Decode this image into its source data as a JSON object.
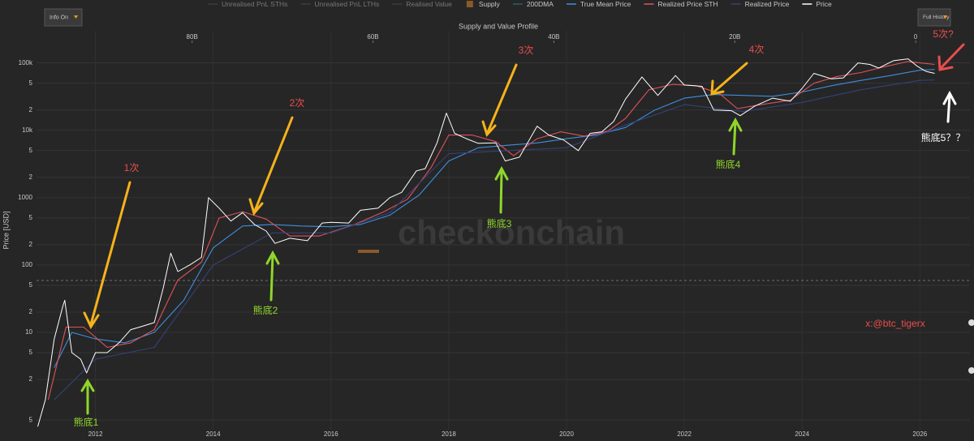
{
  "controls": {
    "info": "Info On",
    "history": "Full History"
  },
  "annotations": [
    "1次",
    "2次",
    "3次",
    "4次",
    "5次?",
    "熊底1",
    "熊底2",
    "熊底3",
    "熊底4",
    "熊底5？？",
    "x:@btc_tigerx"
  ],
  "watermark": "checkonchain",
  "chart_data": {
    "type": "line",
    "ylabel": "Price [USD]",
    "log_y": true,
    "grid": true,
    "ylim": [
      0.36,
      300000
    ],
    "yticks": [
      {
        "value": 0.5,
        "label": "5"
      },
      {
        "value": 2,
        "label": "2"
      },
      {
        "value": 5,
        "label": "5"
      },
      10,
      {
        "value": 20,
        "label": "2"
      },
      {
        "value": 50,
        "label": "5"
      },
      100,
      {
        "value": 200,
        "label": "2"
      },
      {
        "value": 500,
        "label": "5"
      },
      1000,
      {
        "value": 2000,
        "label": "2"
      },
      {
        "value": 5000,
        "label": "5"
      },
      {
        "value": 10000,
        "label": "10k"
      },
      {
        "value": 20000,
        "label": "2"
      },
      {
        "value": 50000,
        "label": "5"
      },
      {
        "value": 100000,
        "label": "100k"
      }
    ],
    "xlim": [
      2011,
      2026.85
    ],
    "xticks": [
      2012,
      2014,
      2016,
      2018,
      2020,
      2022,
      2024,
      2026
    ],
    "x2title": "Supply and Value Profile",
    "x2lim": [
      97.2,
      -6
    ],
    "x2ticks": [
      {
        "value": 80,
        "label": "80B"
      },
      {
        "value": 60,
        "label": "60B"
      },
      {
        "value": 40,
        "label": "40B"
      },
      {
        "value": 20,
        "label": "20B"
      },
      0
    ],
    "legend_extra": [
      {
        "name": "Unrealised PnL STHs",
        "color": "#3c3c3c",
        "marker": "line"
      },
      {
        "name": "Unrealised PnL LTHs",
        "color": "#3c3c3c",
        "marker": "line"
      },
      {
        "name": "Realised Value",
        "color": "#3c3c3c",
        "marker": "line"
      },
      {
        "name": "Supply",
        "color": "#8a5a2a",
        "marker": "square"
      },
      {
        "name": "200DMA",
        "color": "#2d5f63",
        "marker": "line"
      }
    ],
    "series": [
      {
        "name": "True Mean Price",
        "color": "#3d8fe0",
        "x": [
          2011.3,
          2011.6,
          2012.0,
          2012.5,
          2013.0,
          2013.5,
          2014.0,
          2014.5,
          2015.0,
          2015.5,
          2016.0,
          2016.5,
          2017.0,
          2017.5,
          2018.0,
          2018.5,
          2019.0,
          2019.5,
          2020.0,
          2020.5,
          2021.0,
          2021.5,
          2022.0,
          2022.5,
          2023.0,
          2023.5,
          2024.0,
          2024.5,
          2025.0,
          2025.5,
          2026.0,
          2026.25
        ],
        "values": [
          3,
          10,
          8,
          7,
          10,
          30,
          180,
          380,
          400,
          380,
          370,
          400,
          550,
          1100,
          3500,
          5500,
          6000,
          6500,
          7500,
          8500,
          11000,
          20000,
          30000,
          34000,
          33000,
          32000,
          37000,
          46000,
          55000,
          65000,
          78000,
          80000
        ]
      },
      {
        "name": "Realized Price STH",
        "color": "#e0525a",
        "x": [
          2011.2,
          2011.5,
          2011.8,
          2012.2,
          2012.6,
          2013.0,
          2013.4,
          2013.8,
          2014.1,
          2014.5,
          2014.9,
          2015.3,
          2015.8,
          2016.4,
          2016.9,
          2017.3,
          2017.7,
          2018.0,
          2018.4,
          2018.8,
          2019.1,
          2019.5,
          2019.9,
          2020.3,
          2020.7,
          2021.0,
          2021.4,
          2021.8,
          2022.2,
          2022.6,
          2022.9,
          2023.3,
          2023.8,
          2024.2,
          2024.6,
          2025.0,
          2025.4,
          2025.8,
          2026.25
        ],
        "values": [
          1,
          12,
          12,
          6,
          7,
          11,
          60,
          110,
          500,
          620,
          480,
          270,
          270,
          400,
          620,
          950,
          2800,
          8500,
          8500,
          6800,
          4200,
          7500,
          9500,
          8200,
          9700,
          15000,
          40000,
          48000,
          46000,
          35000,
          21000,
          24000,
          28000,
          50000,
          63000,
          72000,
          88000,
          105000,
          95000
        ]
      },
      {
        "name": "Realized Price",
        "color": "#34427a",
        "x": [
          2011.3,
          2012.0,
          2013.0,
          2014.0,
          2015.0,
          2016.0,
          2017.0,
          2018.0,
          2019.0,
          2020.0,
          2021.0,
          2022.0,
          2023.0,
          2024.0,
          2025.0,
          2026.0,
          2026.25
        ],
        "values": [
          1,
          4,
          6,
          100,
          300,
          300,
          600,
          4500,
          5000,
          5500,
          12000,
          24000,
          19000,
          26000,
          40000,
          55000,
          56000
        ]
      },
      {
        "name": "Price",
        "color": "#ffffff",
        "x": [
          2011.02,
          2011.15,
          2011.3,
          2011.45,
          2011.48,
          2011.6,
          2011.75,
          2011.85,
          2012.0,
          2012.2,
          2012.4,
          2012.6,
          2012.75,
          2013.0,
          2013.15,
          2013.28,
          2013.4,
          2013.6,
          2013.8,
          2013.92,
          2014.1,
          2014.3,
          2014.5,
          2014.7,
          2014.9,
          2015.05,
          2015.3,
          2015.6,
          2015.85,
          2016.0,
          2016.3,
          2016.5,
          2016.8,
          2017.0,
          2017.2,
          2017.45,
          2017.6,
          2017.8,
          2017.96,
          2018.1,
          2018.3,
          2018.5,
          2018.8,
          2018.96,
          2019.2,
          2019.5,
          2019.7,
          2019.95,
          2020.2,
          2020.4,
          2020.6,
          2020.8,
          2021.0,
          2021.28,
          2021.55,
          2021.85,
          2022.0,
          2022.3,
          2022.5,
          2022.8,
          2022.95,
          2023.2,
          2023.5,
          2023.8,
          2024.0,
          2024.2,
          2024.5,
          2024.7,
          2024.95,
          2025.15,
          2025.3,
          2025.55,
          2025.8,
          2025.95,
          2026.1,
          2026.25
        ],
        "values": [
          0.4,
          1,
          8,
          25,
          30,
          5,
          4,
          2.5,
          5,
          5,
          7,
          11,
          12,
          14,
          45,
          150,
          80,
          100,
          130,
          1000,
          700,
          450,
          600,
          400,
          320,
          210,
          250,
          230,
          420,
          430,
          420,
          650,
          700,
          1000,
          1200,
          2500,
          2700,
          6500,
          18000,
          9000,
          7500,
          6400,
          6500,
          3500,
          4000,
          11500,
          8500,
          7200,
          5000,
          9000,
          9500,
          13500,
          29000,
          62000,
          33000,
          65000,
          47000,
          45000,
          20000,
          19500,
          16500,
          23000,
          30000,
          27000,
          42000,
          70000,
          58000,
          60000,
          100000,
          95000,
          84000,
          108000,
          115000,
          90000,
          75000,
          70000
        ]
      }
    ]
  }
}
